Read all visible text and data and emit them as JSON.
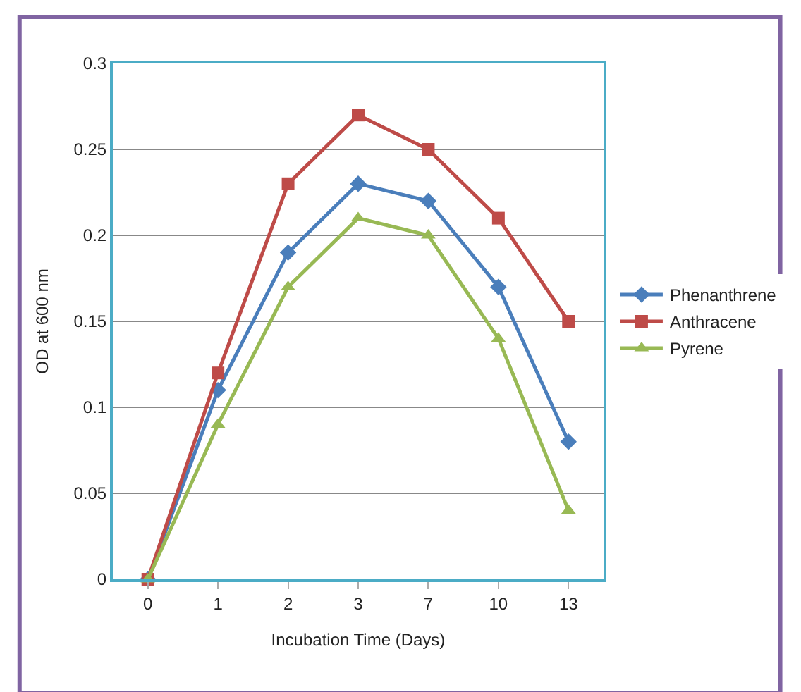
{
  "chart_data": {
    "type": "line",
    "xlabel": "Incubation Time (Days)",
    "ylabel": "OD at 600 nm",
    "categories": [
      "0",
      "1",
      "2",
      "3",
      "7",
      "10",
      "13"
    ],
    "series": [
      {
        "name": "Phenanthrene",
        "color": "#4a7ebb",
        "marker": "diamond",
        "values": [
          0,
          0.11,
          0.19,
          0.23,
          0.22,
          0.17,
          0.08
        ]
      },
      {
        "name": "Anthracene",
        "color": "#be4b48",
        "marker": "square",
        "values": [
          0,
          0.12,
          0.23,
          0.27,
          0.25,
          0.21,
          0.15
        ]
      },
      {
        "name": "Pyrene",
        "color": "#98b954",
        "marker": "triangle",
        "values": [
          0,
          0.09,
          0.17,
          0.21,
          0.2,
          0.14,
          0.04
        ]
      }
    ],
    "ylim": [
      0,
      0.3
    ],
    "yticks": [
      0,
      0.05,
      0.1,
      0.15,
      0.2,
      0.25,
      0.3
    ],
    "grid": "y",
    "legend": "right"
  }
}
